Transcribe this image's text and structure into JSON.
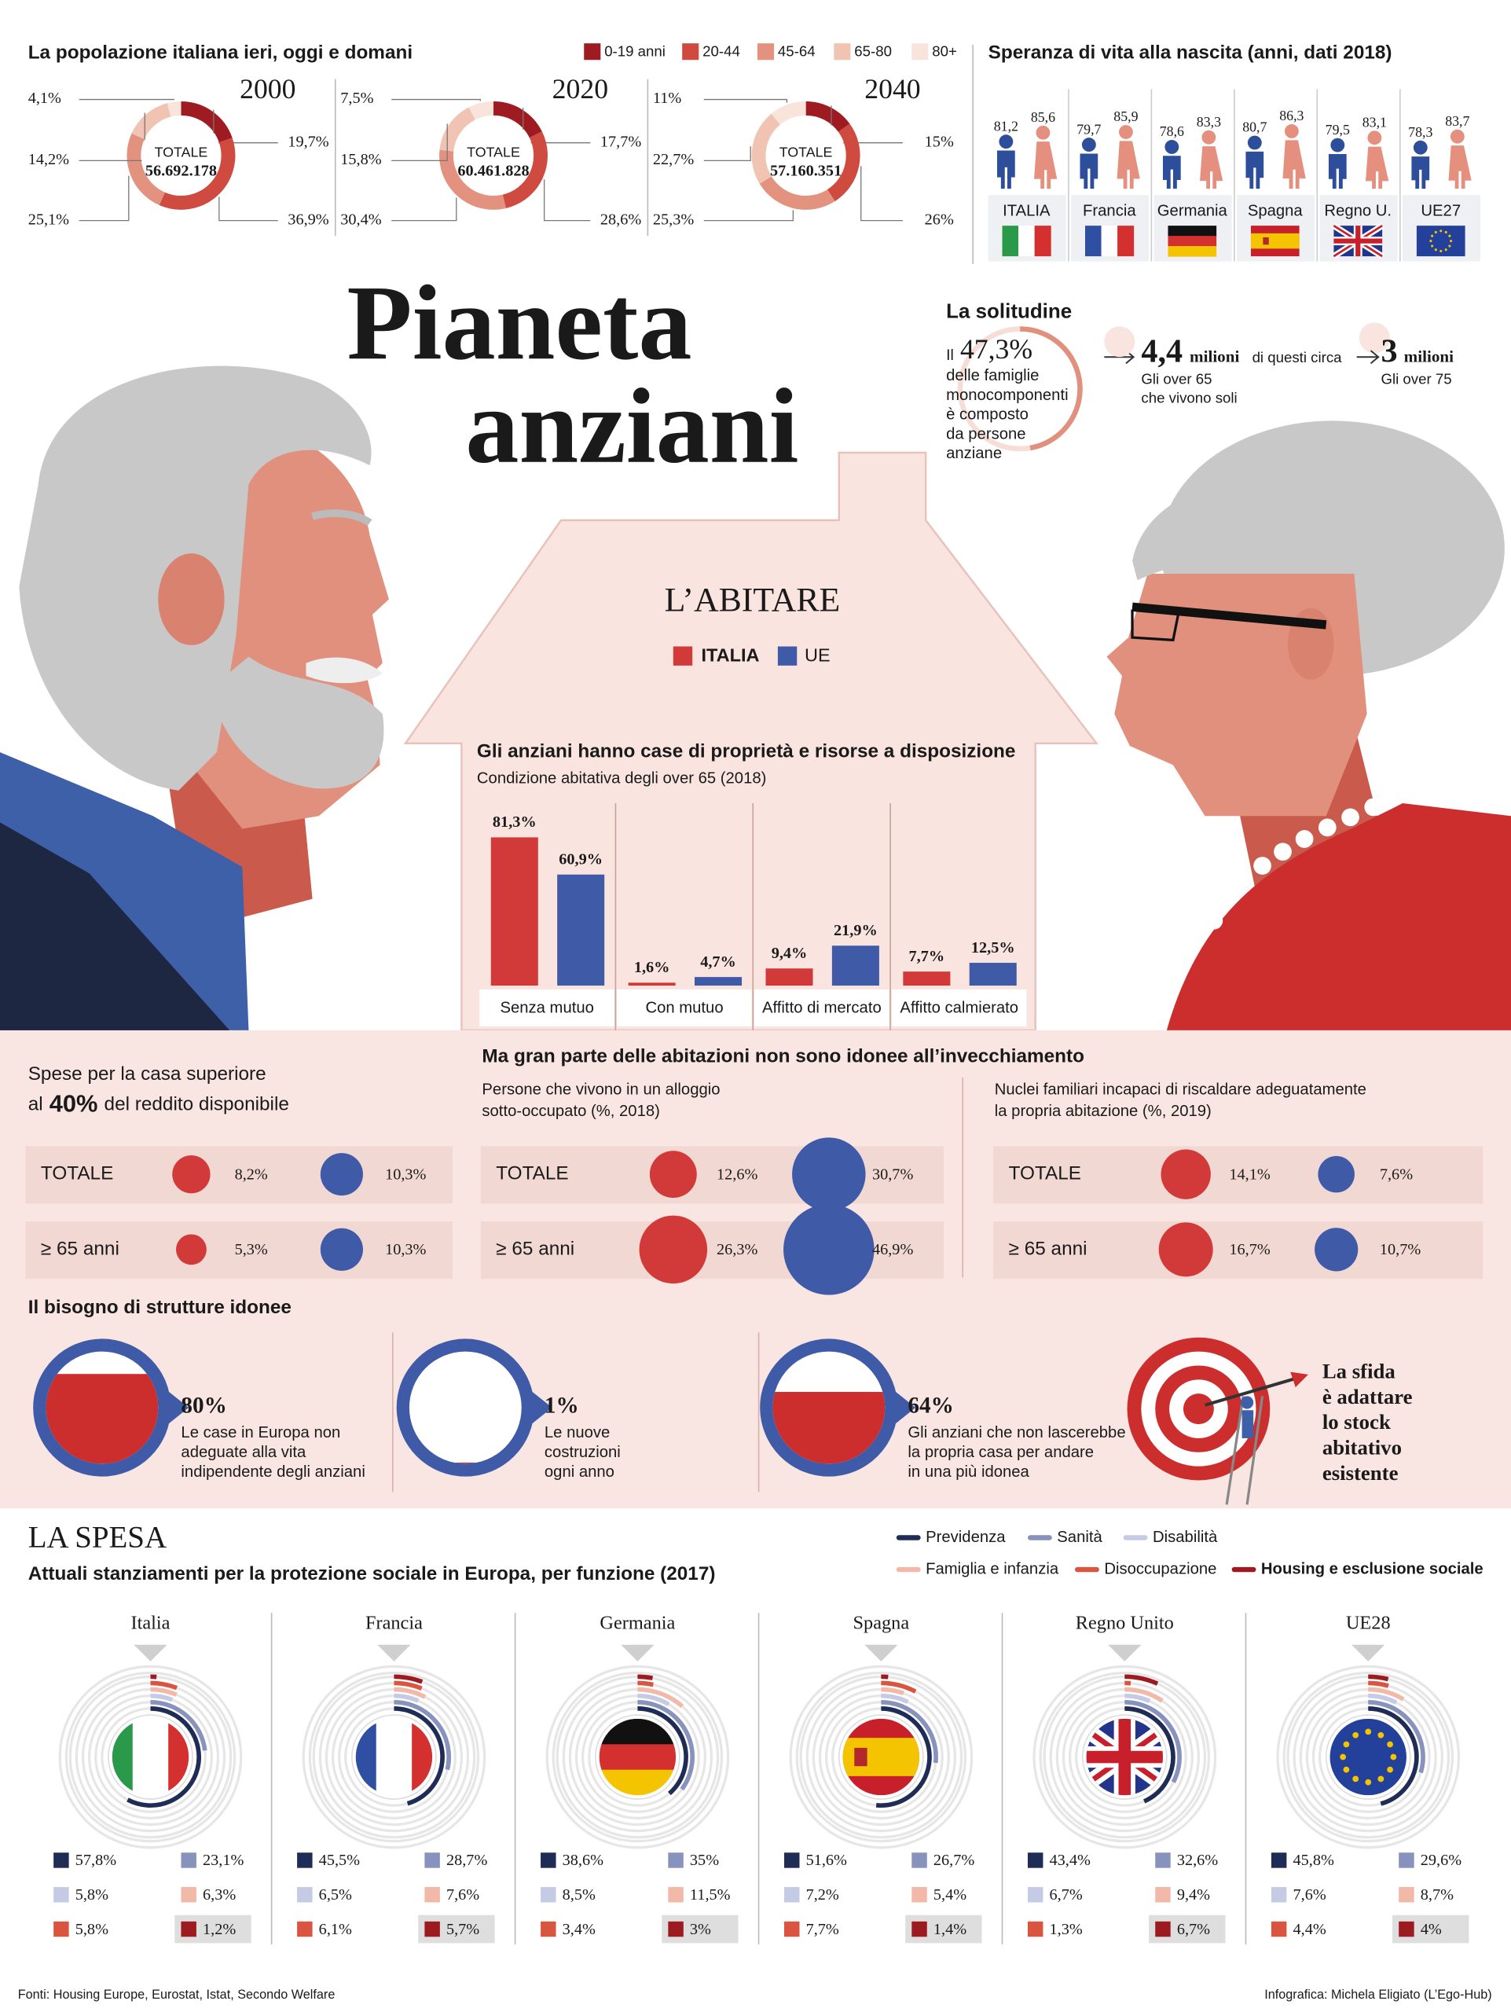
{
  "population": {
    "title": "La popolazione italiana ieri, oggi e domani",
    "legend": [
      "0-19 anni",
      "20-44",
      "45-64",
      "65-80",
      "80+"
    ],
    "colors": [
      "#9e1b21",
      "#cf4a3f",
      "#e2927f",
      "#f1c3b3",
      "#f9e4dc"
    ],
    "total_label": "TOTALE",
    "years": [
      {
        "year": "2000",
        "total": "56.692.178",
        "values": [
          19.7,
          36.9,
          25.1,
          14.2,
          4.1
        ],
        "value_labels": [
          "19,7%",
          "36,9%",
          "25,1%",
          "14,2%",
          "4,1%"
        ]
      },
      {
        "year": "2020",
        "total": "60.461.828",
        "values": [
          17.7,
          28.6,
          30.4,
          15.8,
          7.5
        ],
        "value_labels": [
          "17,7%",
          "28,6%",
          "30,4%",
          "15,8%",
          "7,5%"
        ]
      },
      {
        "year": "2040",
        "total": "57.160.351",
        "values": [
          15,
          26,
          25.3,
          22.7,
          11
        ],
        "value_labels": [
          "15%",
          "26%",
          "25,3%",
          "22,7%",
          "11%"
        ]
      }
    ]
  },
  "life_expectancy": {
    "title": "Speranza di vita alla nascita (anni, dati 2018)",
    "men_color": "#2d4e9b",
    "women_color": "#e5907f",
    "countries": [
      {
        "name": "ITALIA",
        "men": 81.2,
        "women": 85.6,
        "men_label": "81,2",
        "women_label": "85,6"
      },
      {
        "name": "Francia",
        "men": 79.7,
        "women": 85.9,
        "men_label": "79,7",
        "women_label": "85,9"
      },
      {
        "name": "Germania",
        "men": 78.6,
        "women": 83.3,
        "men_label": "78,6",
        "women_label": "83,3"
      },
      {
        "name": "Spagna",
        "men": 80.7,
        "women": 86.3,
        "men_label": "80,7",
        "women_label": "86,3"
      },
      {
        "name": "Regno U.",
        "men": 79.5,
        "women": 83.1,
        "men_label": "79,5",
        "women_label": "83,1"
      },
      {
        "name": "UE27",
        "men": 78.3,
        "women": 83.7,
        "men_label": "78,3",
        "women_label": "83,7"
      }
    ]
  },
  "title": [
    "Pianeta",
    "anziani"
  ],
  "solitude": {
    "title": "La solitudine",
    "share_prefix": "Il",
    "share": 47.3,
    "share_label": "47,3%",
    "share_text": [
      "delle famiglie",
      "monocomponenti",
      "è composto",
      "da persone",
      "anziane"
    ],
    "over65": {
      "label": "4,4",
      "unit": "milioni",
      "text": [
        "Gli over 65",
        "che vivono soli"
      ]
    },
    "connector": "di questi circa",
    "over75": {
      "label": "3",
      "unit": "milioni",
      "text": [
        "Gli over 75"
      ]
    }
  },
  "housing": {
    "title": "L’ABITARE",
    "legend": [
      {
        "name": "ITALIA",
        "color": "#d23a3a"
      },
      {
        "name": "UE",
        "color": "#3f5aa6"
      }
    ],
    "ownership": {
      "title": "Gli anziani hanno case di proprietà e risorse a disposizione",
      "subtitle": "Condizione abitativa degli over 65 (2018)",
      "categories": [
        "Senza mutuo",
        "Con mutuo",
        "Affitto di mercato",
        "Affitto calmierato"
      ],
      "italia": [
        81.3,
        1.6,
        9.4,
        7.7
      ],
      "italia_labels": [
        "81,3%",
        "1,6%",
        "9,4%",
        "7,7%"
      ],
      "ue": [
        60.9,
        4.7,
        21.9,
        12.5
      ],
      "ue_labels": [
        "60,9%",
        "4,7%",
        "21,9%",
        "12,5%"
      ]
    }
  },
  "bubbles": {
    "title": "Ma gran parte delle abitazioni non sono idonee all’invecchiamento",
    "row_labels": [
      "TOTALE",
      "≥ 65 anni"
    ],
    "lead": {
      "line1": "Spese per la casa superiore",
      "before": "al",
      "bold": "40%",
      "after": "del reddito disponibile"
    },
    "panels": [
      {
        "subtitle": [],
        "italia": [
          8.2,
          5.3
        ],
        "italia_labels": [
          "8,2%",
          "5,3%"
        ],
        "ue": [
          10.3,
          10.3
        ],
        "ue_labels": [
          "10,3%",
          "10,3%"
        ]
      },
      {
        "subtitle": [
          "Persone che vivono in un alloggio",
          "sotto-occupato (%, 2018)"
        ],
        "italia": [
          12.6,
          26.3
        ],
        "italia_labels": [
          "12,6%",
          "26,3%"
        ],
        "ue": [
          30.7,
          46.9
        ],
        "ue_labels": [
          "30,7%",
          "46,9%"
        ]
      },
      {
        "subtitle": [
          "Nuclei familiari incapaci di riscaldare adeguatamente",
          "la propria abitazione (%, 2019)"
        ],
        "italia": [
          14.1,
          16.7
        ],
        "italia_labels": [
          "14,1%",
          "16,7%"
        ],
        "ue": [
          7.6,
          10.7
        ],
        "ue_labels": [
          "7,6%",
          "10,7%"
        ]
      }
    ]
  },
  "structures": {
    "title": "Il bisogno di strutture idonee",
    "items": [
      {
        "value": 80,
        "label": "80%",
        "text": [
          "Le case in Europa non",
          "adeguate alla vita",
          "indipendente degli anziani"
        ]
      },
      {
        "value": 1,
        "label": "1%",
        "text": [
          "Le nuove",
          "costruzioni",
          "ogni anno"
        ]
      },
      {
        "value": 64,
        "label": "64%",
        "text": [
          "Gli anziani che non lascerebbe",
          "la propria casa per andare",
          "in una più idonea"
        ]
      }
    ],
    "challenge": [
      "La sfida",
      "è adattare",
      "lo stock",
      "abitativo",
      "esistente"
    ]
  },
  "spending": {
    "title": "LA SPESA",
    "subtitle": "Attuali stanziamenti per la protezione sociale in Europa, per funzione (2017)",
    "functions": [
      {
        "name": "Previdenza",
        "color": "#1f2c56"
      },
      {
        "name": "Sanità",
        "color": "#8792bd"
      },
      {
        "name": "Disabilità",
        "color": "#c5cbe5"
      },
      {
        "name": "Famiglia e infanzia",
        "color": "#f2b9a9"
      },
      {
        "name": "Disoccupazione",
        "color": "#d9553f"
      },
      {
        "name": "Housing e esclusione sociale",
        "color": "#9b1b20"
      }
    ],
    "countries": [
      {
        "name": "Italia",
        "values": [
          57.8,
          23.1,
          5.8,
          6.3,
          5.8,
          1.2
        ],
        "value_labels": [
          "57,8%",
          "23,1%",
          "5,8%",
          "6,3%",
          "5,8%",
          "1,2%"
        ]
      },
      {
        "name": "Francia",
        "values": [
          45.5,
          28.7,
          6.5,
          7.6,
          6.1,
          5.7
        ],
        "value_labels": [
          "45,5%",
          "28,7%",
          "6,5%",
          "7,6%",
          "6,1%",
          "5,7%"
        ]
      },
      {
        "name": "Germania",
        "values": [
          38.6,
          35,
          8.5,
          11.5,
          3.4,
          3
        ],
        "value_labels": [
          "38,6%",
          "35%",
          "8,5%",
          "11,5%",
          "3,4%",
          "3%"
        ]
      },
      {
        "name": "Spagna",
        "values": [
          51.6,
          26.7,
          7.2,
          5.4,
          7.7,
          1.4
        ],
        "value_labels": [
          "51,6%",
          "26,7%",
          "7,2%",
          "5,4%",
          "7,7%",
          "1,4%"
        ]
      },
      {
        "name": "Regno Unito",
        "values": [
          43.4,
          32.6,
          6.7,
          9.4,
          1.3,
          6.7
        ],
        "value_labels": [
          "43,4%",
          "32,6%",
          "6,7%",
          "9,4%",
          "1,3%",
          "6,7%"
        ]
      },
      {
        "name": "UE28",
        "values": [
          45.8,
          29.6,
          7.6,
          8.7,
          4.4,
          4
        ],
        "value_labels": [
          "45,8%",
          "29,6%",
          "7,6%",
          "8,7%",
          "4,4%",
          "4%"
        ]
      }
    ]
  },
  "footer": {
    "sources": "Fonti: Housing Europe, Eurostat, Istat, Secondo Welfare",
    "credit": "Infografica: Michela Eligiato (L’Ego-Hub)"
  }
}
